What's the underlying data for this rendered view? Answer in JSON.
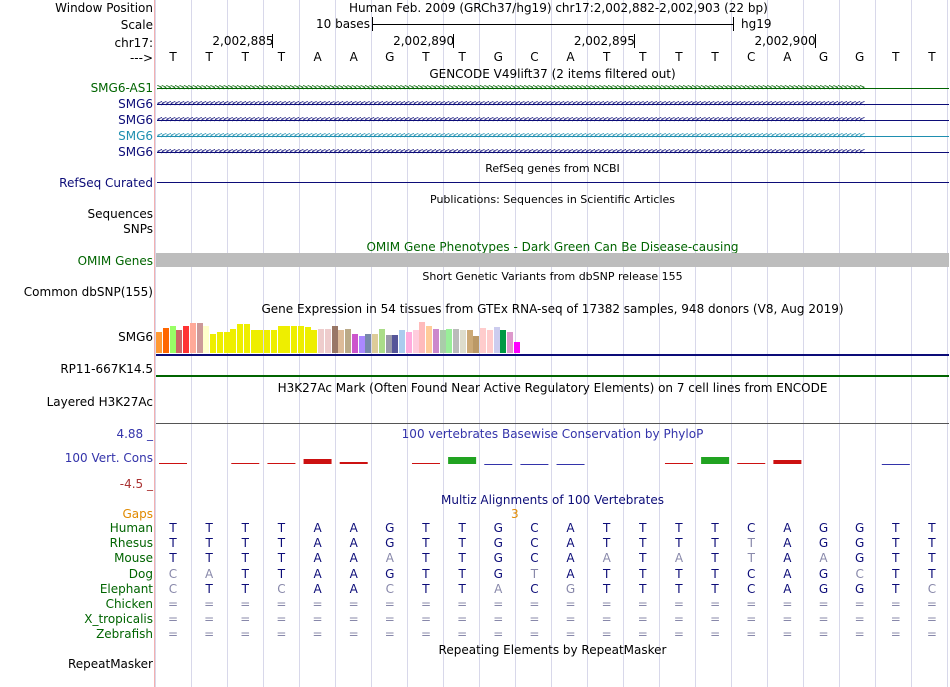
{
  "header": {
    "window_position_label": "Window Position",
    "assembly_info": "Human Feb. 2009 (GRCh37/hg19)   chr17:2,002,882-2,002,903 (22 bp)",
    "scale_label": "Scale",
    "scale_text": "10 bases",
    "assembly_right": "hg19",
    "chrom_label": "chr17:",
    "ticks": [
      "2,002,885",
      "2,002,890",
      "2,002,895",
      "2,002,900"
    ],
    "arrow_label": "--->",
    "bases": [
      "T",
      "T",
      "T",
      "T",
      "A",
      "A",
      "G",
      "T",
      "T",
      "G",
      "C",
      "A",
      "T",
      "T",
      "T",
      "T",
      "C",
      "A",
      "G",
      "G",
      "T",
      "T"
    ]
  },
  "gencode": {
    "title": "GENCODE V49lift37 (2 items filtered out)",
    "genes": [
      {
        "name": "SMG6-AS1",
        "color": "#006400",
        "strand": ">"
      },
      {
        "name": "SMG6",
        "color": "#0c0c78",
        "strand": "<"
      },
      {
        "name": "SMG6",
        "color": "#0c0c78",
        "strand": "<"
      },
      {
        "name": "SMG6",
        "color": "#1f8fb0",
        "strand": "<"
      },
      {
        "name": "SMG6",
        "color": "#0c0c78",
        "strand": "<"
      }
    ]
  },
  "refseq": {
    "title": "RefSeq genes from NCBI",
    "label": "RefSeq Curated",
    "color": "#0c0c78"
  },
  "publications": {
    "title": "Publications: Sequences in Scientific Articles",
    "labels": [
      "Sequences",
      "SNPs"
    ]
  },
  "omim": {
    "title": "OMIM Gene Phenotypes - Dark Green Can Be Disease-causing",
    "label": "OMIM Genes",
    "color": "#006400"
  },
  "dbsnp": {
    "title": "Short Genetic Variants from dbSNP release 155",
    "label": "Common dbSNP(155)"
  },
  "gtex": {
    "title": "Gene Expression in 54 tissues from GTEx RNA-seq of 17382 samples, 948 donors (V8, Aug 2019)",
    "label": "SMG6",
    "label2": "RP11-667K14.5",
    "levels": [
      0.55,
      0.65,
      0.7,
      0.6,
      0.72,
      0.78,
      0.78,
      0.7,
      0.5,
      0.55,
      0.55,
      0.62,
      0.75,
      0.75,
      0.6,
      0.6,
      0.6,
      0.6,
      0.7,
      0.7,
      0.72,
      0.72,
      0.68,
      0.6,
      0.62,
      0.62,
      0.7,
      0.6,
      0.62,
      0.5,
      0.45,
      0.5,
      0.5,
      0.62,
      0.48,
      0.48,
      0.6,
      0.55,
      0.6,
      0.82,
      0.7,
      0.62,
      0.6,
      0.62,
      0.62,
      0.6,
      0.6,
      0.45,
      0.65,
      0.6,
      0.68,
      0.6,
      0.55,
      0.3
    ],
    "colors": [
      "#ff9933",
      "#ff6600",
      "#99ff66",
      "#cc6666",
      "#ff3333",
      "#ffaa99",
      "#cc9999",
      "#ffffcc",
      "#eeee00",
      "#eeee00",
      "#eeee00",
      "#eeee00",
      "#eeee00",
      "#eeee00",
      "#eeee00",
      "#eeee00",
      "#eeee00",
      "#eeee00",
      "#eeee00",
      "#eeee00",
      "#eeee00",
      "#eeee00",
      "#eeee00",
      "#eeee00",
      "#eecccc",
      "#eecccc",
      "#997766",
      "#ddbb99",
      "#bbaa88",
      "#cc55cc",
      "#aa88ff",
      "#7788aa",
      "#ddcc99",
      "#aadd88",
      "#9999aa",
      "#555599",
      "#aaccee",
      "#ffaadd",
      "#ffccdd",
      "#ffbbbb",
      "#ffcc99",
      "#cc88cc",
      "#aaccaa",
      "#99ee99",
      "#bbbbbb",
      "#ddddcc",
      "#ccaa77",
      "#bb9966",
      "#ffcccc",
      "#ffcccc",
      "#ccccee",
      "#009944",
      "#dd99cc",
      "#ff00ff"
    ]
  },
  "h3k27ac": {
    "title": "H3K27Ac Mark (Often Found Near Active Regulatory Elements) on 7 cell lines from ENCODE",
    "label": "Layered H3K27Ac"
  },
  "phylop": {
    "title": "100 vertebrates Basewise Conservation by PhyloP",
    "label": "100 Vert. Cons",
    "max_label": "4.88 _",
    "min_label": "-4.5 _",
    "scores": [
      0.1,
      0,
      0.15,
      0.1,
      0.9,
      0.3,
      0,
      0.05,
      1.3,
      -0.2,
      -0.6,
      -0.1,
      0,
      0,
      0.15,
      1.4,
      0.1,
      0.7,
      0,
      0,
      -0.1,
      0
    ],
    "colors": {
      "positive": "#21a321",
      "negative": "#cc1111",
      "neutral": "#3333aa"
    }
  },
  "multiz": {
    "title": "Multiz Alignments of 100 Vertebrates",
    "gaps_label": "Gaps",
    "gaps_value": "3",
    "gaps_color": "#e08a00",
    "species": [
      {
        "name": "Human",
        "seq": [
          "T",
          "T",
          "T",
          "T",
          "A",
          "A",
          "G",
          "T",
          "T",
          "G",
          "C",
          "A",
          "T",
          "T",
          "T",
          "T",
          "C",
          "A",
          "G",
          "G",
          "T",
          "T"
        ],
        "dim": []
      },
      {
        "name": "Rhesus",
        "seq": [
          "T",
          "T",
          "T",
          "T",
          "A",
          "A",
          "G",
          "T",
          "T",
          "G",
          "C",
          "A",
          "T",
          "T",
          "T",
          "T",
          "T",
          "A",
          "G",
          "G",
          "T",
          "T"
        ],
        "dim": [
          16
        ]
      },
      {
        "name": "Mouse",
        "seq": [
          "T",
          "T",
          "T",
          "T",
          "A",
          "A",
          "A",
          "T",
          "T",
          "G",
          "C",
          "A",
          "A",
          "T",
          "A",
          "T",
          "T",
          "A",
          "A",
          "G",
          "T",
          "T"
        ],
        "dim": [
          6,
          12,
          14,
          16,
          18
        ]
      },
      {
        "name": "Dog",
        "seq": [
          "C",
          "A",
          "T",
          "T",
          "A",
          "A",
          "G",
          "T",
          "T",
          "G",
          "T",
          "A",
          "T",
          "T",
          "T",
          "T",
          "C",
          "A",
          "G",
          "C",
          "T",
          "T"
        ],
        "dim": [
          0,
          1,
          10,
          19
        ]
      },
      {
        "name": "Elephant",
        "seq": [
          "C",
          "T",
          "T",
          "C",
          "A",
          "A",
          "C",
          "T",
          "T",
          "A",
          "C",
          "G",
          "T",
          "T",
          "T",
          "T",
          "C",
          "A",
          "G",
          "G",
          "T",
          "C"
        ],
        "dim": [
          0,
          3,
          6,
          9,
          11,
          21
        ]
      },
      {
        "name": "Chicken",
        "seq": [
          "=",
          "=",
          "=",
          "=",
          "=",
          "=",
          "=",
          "=",
          "=",
          "=",
          "=",
          "=",
          "=",
          "=",
          "=",
          "=",
          "=",
          "=",
          "=",
          "=",
          "=",
          "="
        ],
        "dim": []
      },
      {
        "name": "X_tropicalis",
        "seq": [
          "=",
          "=",
          "=",
          "=",
          "=",
          "=",
          "=",
          "=",
          "=",
          "=",
          "=",
          "=",
          "=",
          "=",
          "=",
          "=",
          "=",
          "=",
          "=",
          "=",
          "=",
          "="
        ],
        "dim": []
      },
      {
        "name": "Zebrafish",
        "seq": [
          "=",
          "=",
          "=",
          "=",
          "=",
          "=",
          "=",
          "=",
          "=",
          "=",
          "=",
          "=",
          "=",
          "=",
          "=",
          "=",
          "=",
          "=",
          "=",
          "=",
          "=",
          "="
        ],
        "dim": []
      }
    ],
    "name_color": "#006400",
    "seq_color": "#0c0c78",
    "dim_color": "#8888aa"
  },
  "repeatmasker": {
    "title": "Repeating Elements by RepeatMasker",
    "label": "RepeatMasker"
  }
}
